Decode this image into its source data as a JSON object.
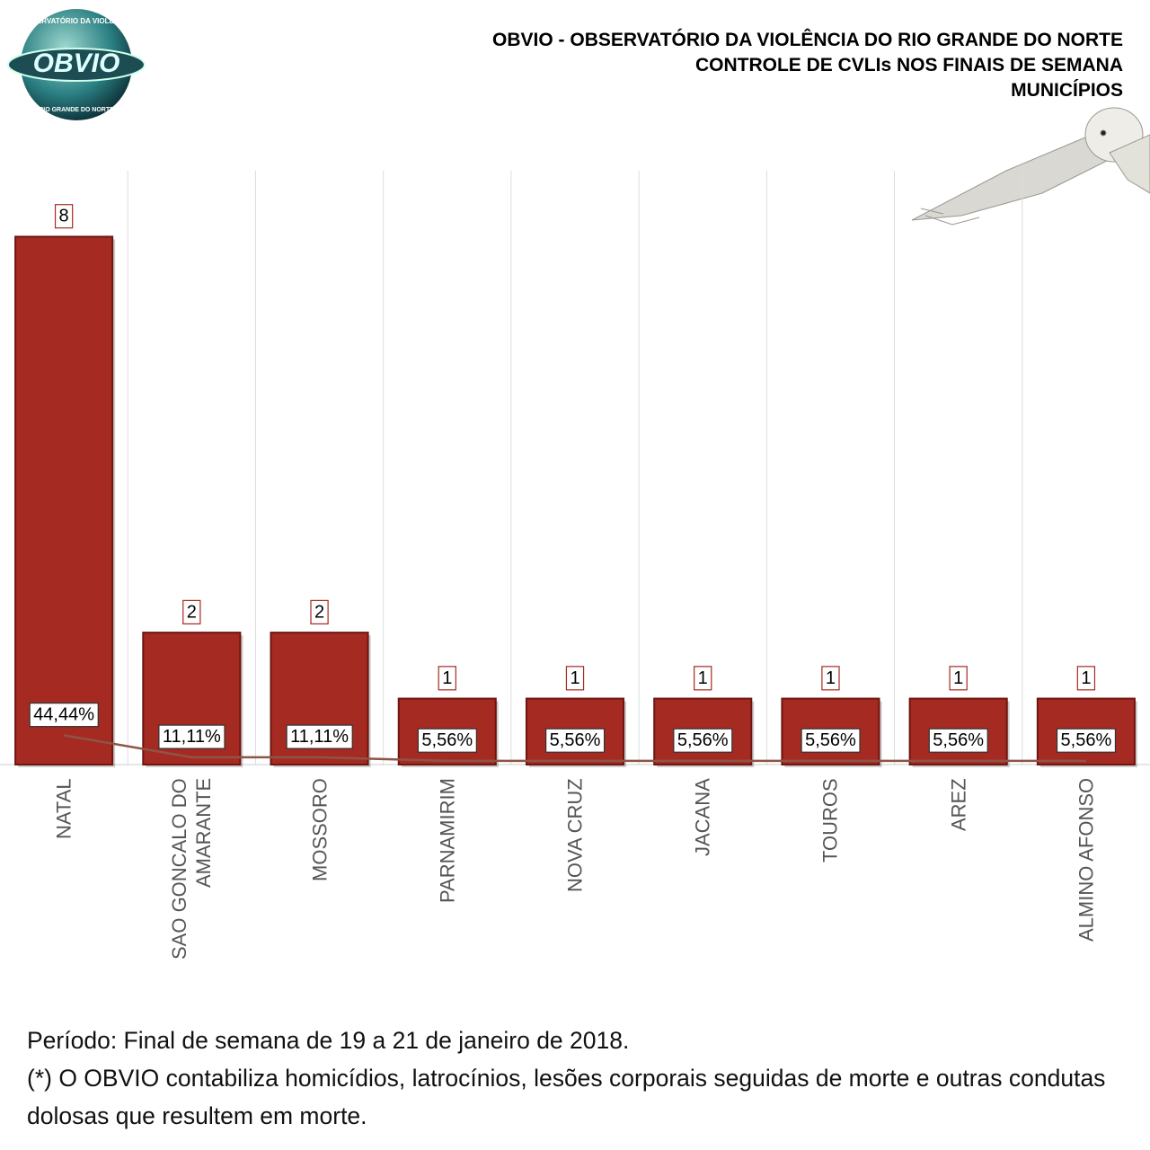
{
  "logo": {
    "top_text": "OBSERVATÓRIO DA VIOLÊNCIA",
    "name": "OBVIO",
    "bottom_text": "RIO GRANDE DO NORTE"
  },
  "chart_data": {
    "type": "bar",
    "title": [
      "OBVIO - OBSERVATÓRIO DA VIOLÊNCIA DO RIO GRANDE DO NORTE",
      "CONTROLE DE CVLIs NOS FINAIS DE SEMANA",
      "MUNICÍPIOS"
    ],
    "categories": [
      "NATAL",
      "SAO GONCALO DO AMARANTE",
      "MOSSORO",
      "PARNAMIRIM",
      "NOVA CRUZ",
      "JACANA",
      "TOUROS",
      "AREZ",
      "ALMINO AFONSO"
    ],
    "series": [
      {
        "type": "bar",
        "color": "#a52a22",
        "values": [
          8,
          2,
          2,
          1,
          1,
          1,
          1,
          1,
          1
        ]
      },
      {
        "type": "line",
        "axis": "y2",
        "color": "#8e5446",
        "values": [
          44.44,
          11.11,
          11.11,
          5.56,
          5.56,
          5.56,
          5.56,
          5.56,
          5.56
        ],
        "value_labels": [
          "44,44%",
          "11,11%",
          "11,11%",
          "5,56%",
          "5,56%",
          "5,56%",
          "5,56%",
          "5,56%",
          "5,56%"
        ]
      }
    ],
    "ylim": [
      0,
      9
    ],
    "y2lim": [
      0,
      900
    ],
    "grid": true
  },
  "footer": [
    "Período: Final de semana de 19 a 21 de janeiro de 2018.",
    "(*) O OBVIO contabiliza homicídios, latrocínios, lesões corporais seguidas de morte e outras condutas dolosas que resultem em morte."
  ]
}
